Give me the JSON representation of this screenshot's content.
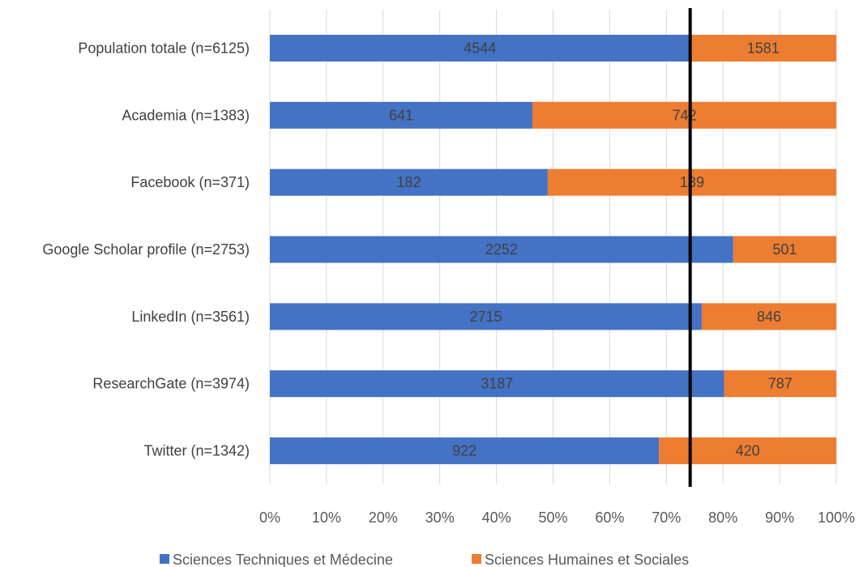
{
  "chart_data": {
    "type": "bar",
    "orientation": "horizontal",
    "stacked": "percent",
    "categories": [
      "Population totale (n=6125)",
      "Academia (n=1383)",
      "Facebook (n=371)",
      "Google Scholar profile (n=2753)",
      "LinkedIn (n=3561)",
      "ResearchGate (n=3974)",
      "Twitter (n=1342)"
    ],
    "series": [
      {
        "name": "Sciences Techniques et Médecine",
        "color": "#4472C4",
        "values": [
          4544,
          641,
          182,
          2252,
          2715,
          3187,
          922
        ]
      },
      {
        "name": "Sciences Humaines et Sociales",
        "color": "#ED7D31",
        "values": [
          1581,
          742,
          189,
          501,
          846,
          787,
          420
        ]
      }
    ],
    "x_ticks": [
      "0%",
      "10%",
      "20%",
      "30%",
      "40%",
      "50%",
      "60%",
      "70%",
      "80%",
      "90%",
      "100%"
    ],
    "xlim": [
      0,
      100
    ],
    "reference_line": {
      "value": 74.2,
      "color": "#000000"
    },
    "grid": "vertical",
    "legend_position": "bottom",
    "title": "",
    "xlabel": "",
    "ylabel": ""
  }
}
